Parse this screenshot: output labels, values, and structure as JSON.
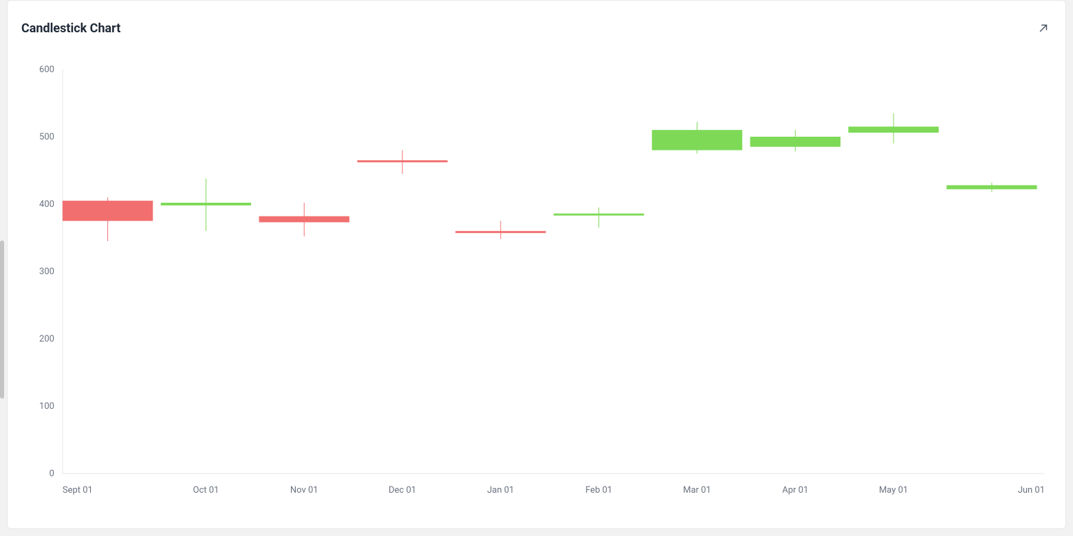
{
  "card": {
    "title": "Candlestick Chart",
    "expand_icon": "expand"
  },
  "chart": {
    "type": "candlestick",
    "background_color": "#ffffff",
    "card_border_color": "#e5e7eb",
    "axis_color": "#e5e7eb",
    "axis_label_color": "#6b7280",
    "axis_fontsize": 13,
    "title_fontsize": 18,
    "title_color": "#1f2937",
    "up_color": "#7ed957",
    "down_color": "#f26f6f",
    "y": {
      "min": 0,
      "max": 600,
      "tick_step": 100,
      "tick_labels": [
        "0",
        "100",
        "200",
        "300",
        "400",
        "500",
        "600"
      ]
    },
    "x": {
      "labels": [
        "Sept 01",
        "Oct 01",
        "Nov 01",
        "Dec 01",
        "Jan 01",
        "Feb 01",
        "Mar 01",
        "Apr 01",
        "May 01",
        "Jun 01"
      ]
    },
    "candles": [
      {
        "label": "Sept 01",
        "open": 405,
        "close": 375,
        "high": 410,
        "low": 345,
        "dir": "down"
      },
      {
        "label": "Oct 01",
        "open": 398,
        "close": 402,
        "high": 438,
        "low": 360,
        "dir": "up"
      },
      {
        "label": "Nov 01",
        "open": 382,
        "close": 373,
        "high": 402,
        "low": 352,
        "dir": "down"
      },
      {
        "label": "Dec 01",
        "open": 465,
        "close": 462,
        "high": 480,
        "low": 445,
        "dir": "down"
      },
      {
        "label": "Jan 01",
        "open": 360,
        "close": 357,
        "high": 375,
        "low": 348,
        "dir": "down"
      },
      {
        "label": "Feb 01",
        "open": 383,
        "close": 386,
        "high": 395,
        "low": 365,
        "dir": "up"
      },
      {
        "label": "Mar 01",
        "open": 480,
        "close": 510,
        "high": 522,
        "low": 475,
        "dir": "up"
      },
      {
        "label": "Apr 01",
        "open": 485,
        "close": 500,
        "high": 510,
        "low": 478,
        "dir": "up"
      },
      {
        "label": "May 01",
        "open": 506,
        "close": 515,
        "high": 535,
        "low": 490,
        "dir": "up"
      },
      {
        "label": "Jun 01",
        "open": 422,
        "close": 428,
        "high": 432,
        "low": 418,
        "dir": "up"
      }
    ],
    "candle_width_ratio": 0.92,
    "wick_width": 1
  }
}
